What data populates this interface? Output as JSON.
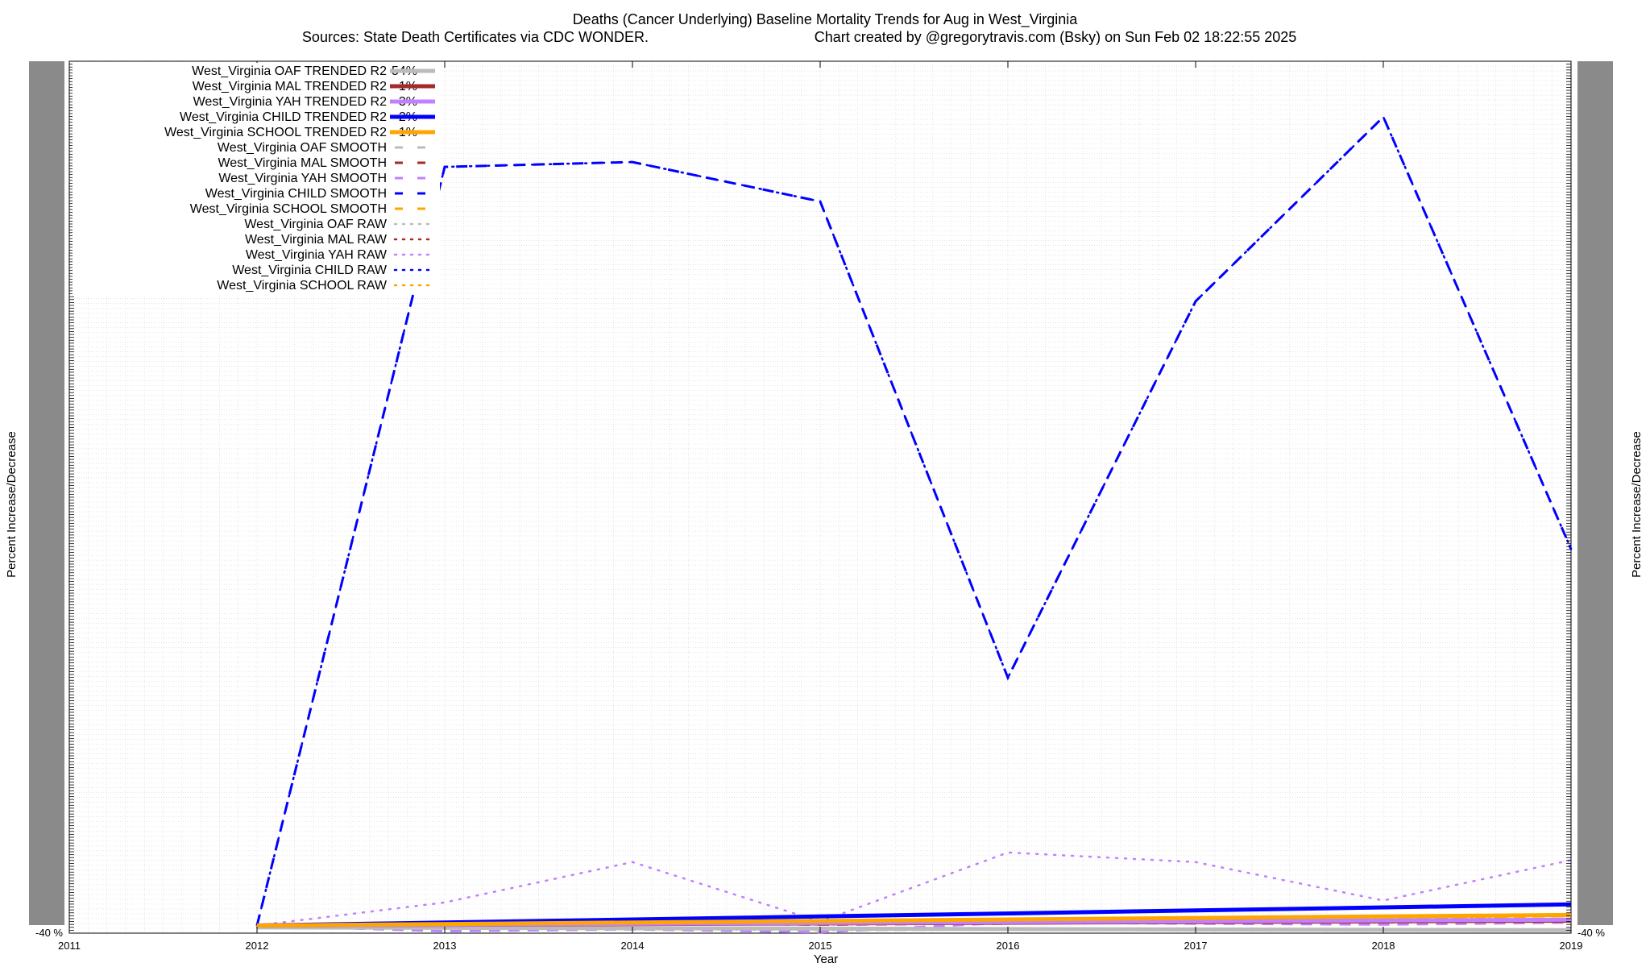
{
  "chart_data": {
    "type": "line",
    "title": "Deaths (Cancer Underlying)  Baseline Mortality Trends for Aug in West_Virginia",
    "subtitle_left": "Sources: State Death Certificates via CDC WONDER.",
    "subtitle_right": "Chart created by @gregorytravis.com (Bsky) on Sun Feb 02 18:22:55 2025",
    "xlabel": "Year",
    "ylabel": "Percent Increase/Decrease",
    "y2label": "Percent Increase/Decrease",
    "x_ticks": [
      "2011",
      "2012",
      "2013",
      "2014",
      "2015",
      "2016",
      "2017",
      "2018",
      "2019"
    ],
    "xlim": [
      2011,
      2019
    ],
    "ylim": [
      -40,
      4500
    ],
    "y_tick_label_bottom": "-40 %",
    "grid": true,
    "legend_position": "top-left",
    "series": [
      {
        "name": "West_Virginia OAF TRENDED R2",
        "r2": "54%",
        "style": "trend",
        "color": "#bbbbbb",
        "x": [
          2012,
          2019
        ],
        "y": [
          -10,
          -25
        ]
      },
      {
        "name": "West_Virginia MAL TRENDED R2",
        "r2": "1%",
        "style": "trend",
        "color": "#a52a2a",
        "x": [
          2012,
          2019
        ],
        "y": [
          0,
          25
        ]
      },
      {
        "name": "West_Virginia YAH TRENDED R2",
        "r2": "3%",
        "style": "trend",
        "color": "#c080ff",
        "x": [
          2012,
          2019
        ],
        "y": [
          0,
          30
        ]
      },
      {
        "name": "West_Virginia CHILD TRENDED R2",
        "r2": "2%",
        "style": "trend",
        "color": "#0000ff",
        "x": [
          2012,
          2019
        ],
        "y": [
          0,
          110
        ]
      },
      {
        "name": "West_Virginia SCHOOL TRENDED R2",
        "r2": "1%",
        "style": "trend",
        "color": "#ffa500",
        "x": [
          2012,
          2019
        ],
        "y": [
          0,
          55
        ]
      },
      {
        "name": "West_Virginia OAF SMOOTH",
        "style": "smooth",
        "color": "#bbbbbb",
        "x": [
          2012,
          2013,
          2014,
          2015,
          2016,
          2017,
          2018,
          2019
        ],
        "y": [
          -10,
          -15,
          -20,
          -25,
          -20,
          -25,
          -20,
          -28
        ]
      },
      {
        "name": "West_Virginia MAL SMOOTH",
        "style": "smooth",
        "color": "#a52a2a",
        "x": [
          2012,
          2013,
          2014,
          2015,
          2016,
          2017,
          2018,
          2019
        ],
        "y": [
          0,
          5,
          10,
          5,
          10,
          20,
          15,
          25
        ]
      },
      {
        "name": "West_Virginia YAH SMOOTH",
        "style": "smooth",
        "color": "#c080ff",
        "x": [
          2012,
          2013,
          2014,
          2015,
          2016,
          2017,
          2018,
          2019
        ],
        "y": [
          0,
          -30,
          -20,
          -35,
          15,
          10,
          5,
          15
        ]
      },
      {
        "name": "West_Virginia CHILD SMOOTH",
        "style": "smooth",
        "color": "#0000ff",
        "x": [
          2012,
          2013,
          2014,
          2015,
          2016,
          2017,
          2018,
          2019
        ],
        "y": [
          0,
          3950,
          3975,
          3770,
          1290,
          3250,
          4210,
          1960
        ]
      },
      {
        "name": "West_Virginia SCHOOL SMOOTH",
        "style": "smooth",
        "color": "#ffa500",
        "x": [
          2012,
          2013,
          2014,
          2015,
          2016,
          2017,
          2018,
          2019
        ],
        "y": [
          0,
          10,
          20,
          15,
          30,
          40,
          35,
          50
        ]
      },
      {
        "name": "West_Virginia OAF RAW",
        "style": "raw",
        "color": "#bbbbbb",
        "x": [
          2012,
          2013,
          2014,
          2015,
          2016,
          2017,
          2018,
          2019
        ],
        "y": [
          -10,
          -15,
          -18,
          -25,
          -22,
          -25,
          -20,
          -28
        ]
      },
      {
        "name": "West_Virginia MAL RAW",
        "style": "raw",
        "color": "#a52a2a",
        "x": [
          2012,
          2013,
          2014,
          2015,
          2016,
          2017,
          2018,
          2019
        ],
        "y": [
          0,
          5,
          8,
          5,
          12,
          20,
          15,
          25
        ]
      },
      {
        "name": "West_Virginia YAH RAW",
        "style": "raw",
        "color": "#c080ff",
        "x": [
          2012,
          2013,
          2014,
          2015,
          2016,
          2017,
          2018,
          2019
        ],
        "y": [
          0,
          120,
          330,
          20,
          380,
          330,
          130,
          340
        ]
      },
      {
        "name": "West_Virginia CHILD RAW",
        "style": "raw",
        "color": "#0000ff",
        "x": [
          2012,
          2013,
          2014,
          2015,
          2016,
          2017,
          2018,
          2019
        ],
        "y": [
          0,
          3950,
          3975,
          3770,
          1290,
          3250,
          4210,
          1960
        ]
      },
      {
        "name": "West_Virginia SCHOOL RAW",
        "style": "raw",
        "color": "#ffa500",
        "x": [
          2012,
          2013,
          2014,
          2015,
          2016,
          2017,
          2018,
          2019
        ],
        "y": [
          0,
          10,
          18,
          15,
          30,
          40,
          35,
          50
        ]
      }
    ]
  }
}
